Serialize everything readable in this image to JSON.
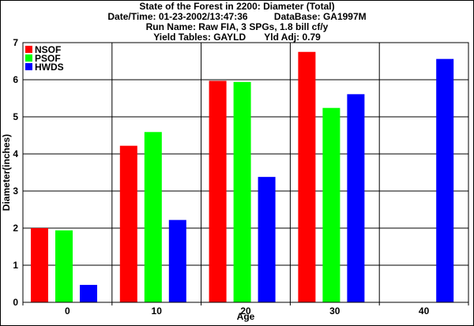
{
  "header": {
    "title": "State of the Forest in 2200: Diameter (Total)",
    "line2": "Date/Time: 01-23-2002/13:47:36          DataBase: GA1997M",
    "line3": "Run Name: Raw FIA, 3 SPGs, 1.8 bill cf/y",
    "line4": "Yield Tables: GAYLD       Yld Adj: 0.79"
  },
  "chart_data": {
    "type": "bar",
    "title": "State of the Forest in 2200: Diameter (Total)",
    "xlabel": "Age",
    "ylabel": "Diameter(inches)",
    "categories": [
      "0",
      "10",
      "20",
      "30",
      "40"
    ],
    "ylim": [
      0,
      7
    ],
    "yticks": [
      "0",
      "1",
      "2",
      "3",
      "4",
      "5",
      "6",
      "7"
    ],
    "grid": true,
    "legend_position": "top-left",
    "series": [
      {
        "name": "NSOF",
        "color": "#ff0000",
        "values": [
          2.0,
          4.22,
          5.97,
          6.75,
          null
        ]
      },
      {
        "name": "PSOF",
        "color": "#00ff00",
        "values": [
          1.94,
          4.59,
          5.94,
          5.24,
          null
        ]
      },
      {
        "name": "HWDS",
        "color": "#0000ff",
        "values": [
          0.47,
          2.22,
          3.38,
          5.61,
          6.56
        ]
      }
    ]
  }
}
